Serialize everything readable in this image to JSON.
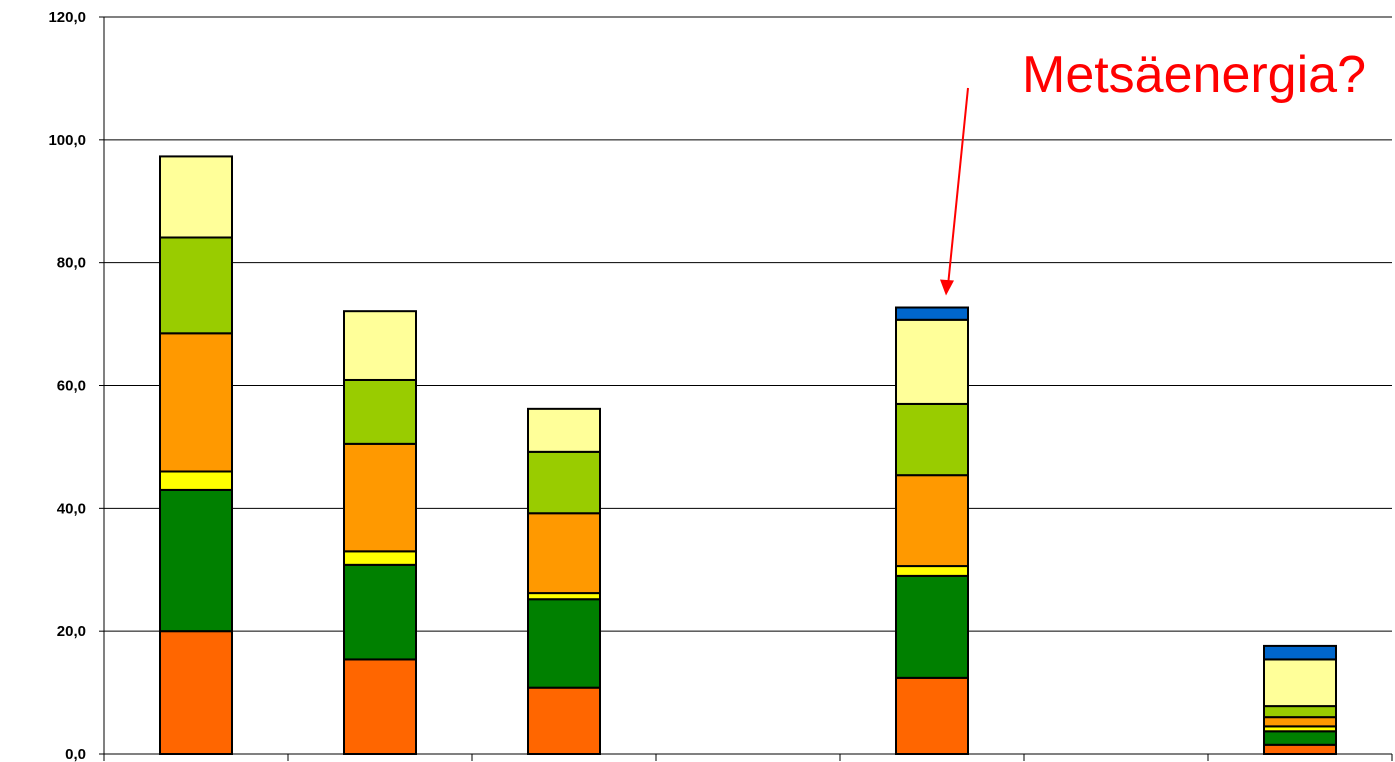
{
  "chart_data": {
    "type": "bar",
    "stacked": true,
    "title": "",
    "xlabel": "",
    "ylabel": "",
    "ylim": [
      0,
      120
    ],
    "y_ticks": [
      0,
      20,
      40,
      60,
      80,
      100,
      120
    ],
    "y_tick_labels": [
      "0,0",
      "20,0",
      "40,0",
      "60,0",
      "80,0",
      "100,0",
      "120,0"
    ],
    "grid": true,
    "legend": "none",
    "category_count": 7,
    "series": [
      {
        "color": "#ff6600",
        "values": [
          20.0,
          15.4,
          10.8,
          null,
          12.4,
          null,
          1.5
        ]
      },
      {
        "color": "#008000",
        "values": [
          23.0,
          15.4,
          14.4,
          null,
          16.6,
          null,
          2.2
        ]
      },
      {
        "color": "#ffff00",
        "values": [
          3.0,
          2.2,
          1.0,
          null,
          1.6,
          null,
          0.8
        ]
      },
      {
        "color": "#ff9900",
        "values": [
          22.5,
          17.5,
          13.0,
          null,
          14.8,
          null,
          1.5
        ]
      },
      {
        "color": "#99cc00",
        "values": [
          15.6,
          10.4,
          10.0,
          null,
          11.6,
          null,
          1.8
        ]
      },
      {
        "color": "#ffff99",
        "values": [
          13.2,
          11.2,
          7.0,
          null,
          13.7,
          null,
          7.6
        ]
      },
      {
        "color": "#0066cc",
        "values": [
          0,
          0,
          0,
          null,
          2.0,
          null,
          2.2
        ]
      }
    ],
    "annotations": [
      {
        "text": "Metsäenergia?",
        "color": "#ff0000",
        "points_to_category": 4
      }
    ]
  }
}
